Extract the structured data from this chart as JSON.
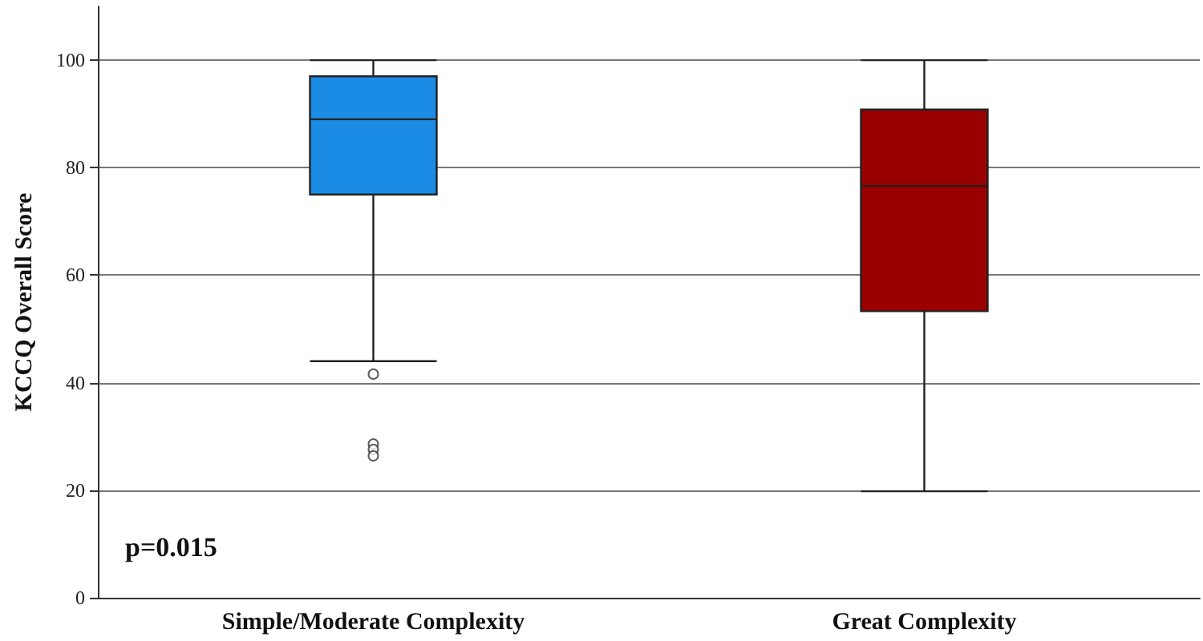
{
  "chart_data": {
    "type": "box",
    "ylabel": "KCCQ Overall Score",
    "categories": [
      "Simple/Moderate Complexity",
      "Great Complexity"
    ],
    "boxes": [
      {
        "low": 44,
        "q1": 75,
        "median": 89,
        "q3": 97,
        "high": 100,
        "outliers": [
          41.6,
          28.6,
          27.6,
          26.4
        ]
      },
      {
        "low": 19.8,
        "q1": 53.3,
        "median": 76.6,
        "q3": 90.8,
        "high": 100
      }
    ],
    "colors": [
      "#1a8ce6",
      "#990000"
    ],
    "ylim": [
      0,
      110
    ],
    "yticks": [
      0,
      20,
      40,
      60,
      80,
      100
    ],
    "grid": "y",
    "marker": "circle",
    "annotations": [
      "p=0.015"
    ]
  }
}
